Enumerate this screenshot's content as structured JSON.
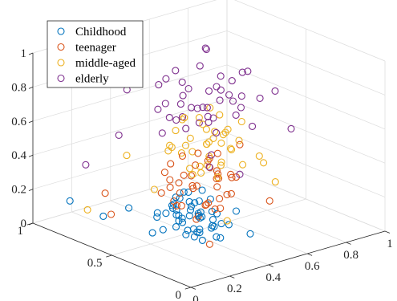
{
  "chart_data": {
    "type": "scatter",
    "dimensions": 3,
    "title": "",
    "xlabel": "",
    "ylabel": "",
    "zlabel": "",
    "xlim": [
      0,
      1
    ],
    "ylim": [
      0,
      1
    ],
    "zlim": [
      0,
      1
    ],
    "grid": true,
    "legend_position": "top-left",
    "x_ticks": [
      "0",
      "0.2",
      "0.4",
      "0.6",
      "0.8",
      "1"
    ],
    "y_ticks": [
      "0",
      "0.5",
      "1"
    ],
    "z_ticks": [
      "0",
      "0.2",
      "0.4",
      "0.6",
      "0.8",
      "1"
    ],
    "series": [
      {
        "name": "Childhood",
        "color": "#0072BD",
        "points": [
          [
            0.35,
            0.45,
            0.05
          ],
          [
            0.4,
            0.5,
            0.1
          ],
          [
            0.42,
            0.38,
            0.08
          ],
          [
            0.38,
            0.42,
            0.15
          ],
          [
            0.45,
            0.55,
            0.12
          ],
          [
            0.3,
            0.4,
            0.06
          ],
          [
            0.33,
            0.35,
            0.1
          ],
          [
            0.48,
            0.45,
            0.07
          ],
          [
            0.36,
            0.6,
            0.09
          ],
          [
            0.41,
            0.48,
            0.18
          ],
          [
            0.28,
            0.52,
            0.05
          ],
          [
            0.44,
            0.3,
            0.11
          ],
          [
            0.39,
            0.44,
            0.03
          ],
          [
            0.32,
            0.47,
            0.14
          ],
          [
            0.47,
            0.58,
            0.08
          ],
          [
            0.34,
            0.36,
            0.16
          ],
          [
            0.43,
            0.62,
            0.05
          ],
          [
            0.37,
            0.55,
            0.2
          ],
          [
            0.4,
            0.33,
            0.04
          ],
          [
            0.3,
            0.58,
            0.12
          ],
          [
            0.46,
            0.4,
            0.13
          ],
          [
            0.35,
            0.5,
            0.22
          ],
          [
            0.42,
            0.46,
            0.01
          ],
          [
            0.38,
            0.28,
            0.06
          ],
          [
            0.29,
            0.45,
            0.09
          ],
          [
            0.45,
            0.5,
            0.17
          ],
          [
            0.33,
            0.62,
            0.07
          ],
          [
            0.41,
            0.38,
            0.24
          ],
          [
            0.36,
            0.42,
            0.02
          ],
          [
            0.44,
            0.55,
            0.15
          ],
          [
            0.31,
            0.5,
            0.19
          ],
          [
            0.39,
            0.57,
            0.11
          ],
          [
            0.47,
            0.43,
            0.04
          ],
          [
            0.34,
            0.4,
            0.08
          ],
          [
            0.43,
            0.48,
            0.1
          ],
          [
            0.37,
            0.47,
            0.26
          ],
          [
            0.4,
            0.6,
            0.13
          ],
          [
            0.32,
            0.32,
            0.05
          ],
          [
            0.45,
            0.36,
            0.09
          ],
          [
            0.38,
            0.52,
            0.06
          ],
          [
            0.25,
            0.55,
            0.03
          ],
          [
            0.5,
            0.48,
            0.1
          ],
          [
            0.35,
            0.3,
            0.12
          ],
          [
            0.42,
            0.56,
            0.21
          ],
          [
            0.28,
            0.42,
            0.14
          ],
          [
            0.46,
            0.62,
            0.02
          ],
          [
            0.4,
            0.42,
            0.28
          ],
          [
            0.33,
            0.52,
            0.16
          ],
          [
            0.48,
            0.52,
            0.06
          ],
          [
            0.36,
            0.38,
            0.18
          ],
          [
            0.2,
            0.8,
            0.05
          ],
          [
            0.55,
            0.3,
            0.02
          ],
          [
            0.15,
            0.95,
            0.1
          ],
          [
            0.6,
            0.45,
            0.08
          ],
          [
            0.25,
            0.7,
            0.12
          ]
        ]
      },
      {
        "name": "teenager",
        "color": "#D95319",
        "points": [
          [
            0.35,
            0.5,
            0.25
          ],
          [
            0.45,
            0.55,
            0.3
          ],
          [
            0.4,
            0.4,
            0.2
          ],
          [
            0.5,
            0.45,
            0.35
          ],
          [
            0.38,
            0.6,
            0.28
          ],
          [
            0.42,
            0.35,
            0.32
          ],
          [
            0.48,
            0.58,
            0.22
          ],
          [
            0.33,
            0.45,
            0.38
          ],
          [
            0.55,
            0.5,
            0.27
          ],
          [
            0.44,
            0.42,
            0.4
          ],
          [
            0.36,
            0.55,
            0.18
          ],
          [
            0.52,
            0.38,
            0.33
          ],
          [
            0.4,
            0.62,
            0.36
          ],
          [
            0.47,
            0.48,
            0.15
          ],
          [
            0.3,
            0.5,
            0.3
          ],
          [
            0.58,
            0.55,
            0.24
          ],
          [
            0.43,
            0.3,
            0.29
          ],
          [
            0.39,
            0.45,
            0.42
          ],
          [
            0.5,
            0.6,
            0.19
          ],
          [
            0.34,
            0.38,
            0.34
          ],
          [
            0.46,
            0.52,
            0.44
          ],
          [
            0.55,
            0.42,
            0.21
          ],
          [
            0.41,
            0.58,
            0.26
          ],
          [
            0.37,
            0.42,
            0.12
          ],
          [
            0.49,
            0.35,
            0.37
          ],
          [
            0.32,
            0.58,
            0.23
          ],
          [
            0.53,
            0.48,
            0.31
          ],
          [
            0.45,
            0.4,
            0.16
          ],
          [
            0.38,
            0.52,
            0.45
          ],
          [
            0.6,
            0.45,
            0.28
          ],
          [
            0.42,
            0.47,
            0.1
          ],
          [
            0.35,
            0.32,
            0.26
          ],
          [
            0.56,
            0.58,
            0.34
          ],
          [
            0.4,
            0.55,
            0.14
          ],
          [
            0.48,
            0.42,
            0.47
          ],
          [
            0.31,
            0.47,
            0.2
          ],
          [
            0.52,
            0.52,
            0.39
          ],
          [
            0.44,
            0.36,
            0.24
          ],
          [
            0.37,
            0.62,
            0.32
          ],
          [
            0.51,
            0.44,
            0.13
          ],
          [
            0.2,
            0.75,
            0.08
          ],
          [
            0.65,
            0.3,
            0.18
          ],
          [
            0.25,
            0.85,
            0.15
          ],
          [
            0.7,
            0.55,
            0.4
          ],
          [
            0.3,
            0.25,
            0.06
          ]
        ]
      },
      {
        "name": "middle-aged",
        "color": "#EDB120",
        "points": [
          [
            0.4,
            0.55,
            0.45
          ],
          [
            0.5,
            0.5,
            0.5
          ],
          [
            0.45,
            0.45,
            0.4
          ],
          [
            0.55,
            0.6,
            0.55
          ],
          [
            0.42,
            0.4,
            0.48
          ],
          [
            0.48,
            0.58,
            0.42
          ],
          [
            0.52,
            0.42,
            0.58
          ],
          [
            0.38,
            0.5,
            0.52
          ],
          [
            0.58,
            0.52,
            0.46
          ],
          [
            0.46,
            0.62,
            0.6
          ],
          [
            0.44,
            0.35,
            0.44
          ],
          [
            0.54,
            0.47,
            0.38
          ],
          [
            0.41,
            0.6,
            0.56
          ],
          [
            0.5,
            0.38,
            0.62
          ],
          [
            0.36,
            0.45,
            0.41
          ],
          [
            0.57,
            0.55,
            0.52
          ],
          [
            0.47,
            0.52,
            0.36
          ],
          [
            0.53,
            0.4,
            0.49
          ],
          [
            0.43,
            0.57,
            0.64
          ],
          [
            0.49,
            0.46,
            0.54
          ],
          [
            0.6,
            0.48,
            0.43
          ],
          [
            0.39,
            0.38,
            0.57
          ],
          [
            0.51,
            0.63,
            0.47
          ],
          [
            0.45,
            0.5,
            0.66
          ],
          [
            0.56,
            0.36,
            0.4
          ],
          [
            0.4,
            0.48,
            0.35
          ],
          [
            0.62,
            0.58,
            0.59
          ],
          [
            0.48,
            0.42,
            0.33
          ],
          [
            0.35,
            0.55,
            0.5
          ],
          [
            0.53,
            0.53,
            0.68
          ],
          [
            0.44,
            0.44,
            0.53
          ],
          [
            0.59,
            0.42,
            0.51
          ],
          [
            0.42,
            0.65,
            0.45
          ],
          [
            0.5,
            0.55,
            0.3
          ],
          [
            0.46,
            0.36,
            0.61
          ],
          [
            0.3,
            0.6,
            0.25
          ],
          [
            0.7,
            0.4,
            0.35
          ],
          [
            0.25,
            0.45,
            0.55
          ],
          [
            0.75,
            0.6,
            0.5
          ],
          [
            0.2,
            0.9,
            0.05
          ],
          [
            0.8,
            0.55,
            0.3
          ],
          [
            0.35,
            0.2,
            0.2
          ],
          [
            0.65,
            0.7,
            0.45
          ],
          [
            0.28,
            0.75,
            0.4
          ],
          [
            0.72,
            0.35,
            0.25
          ]
        ]
      },
      {
        "name": "elderly",
        "color": "#7E2F8E",
        "points": [
          [
            0.45,
            0.55,
            0.7
          ],
          [
            0.5,
            0.5,
            0.8
          ],
          [
            0.4,
            0.45,
            0.75
          ],
          [
            0.55,
            0.6,
            0.65
          ],
          [
            0.48,
            0.4,
            0.85
          ],
          [
            0.42,
            0.58,
            0.72
          ],
          [
            0.52,
            0.45,
            0.9
          ],
          [
            0.38,
            0.52,
            0.68
          ],
          [
            0.58,
            0.55,
            0.78
          ],
          [
            0.46,
            0.62,
            0.82
          ],
          [
            0.44,
            0.38,
            0.62
          ],
          [
            0.54,
            0.48,
            0.74
          ],
          [
            0.36,
            0.6,
            0.88
          ],
          [
            0.6,
            0.42,
            0.7
          ],
          [
            0.47,
            0.52,
            0.95
          ],
          [
            0.41,
            0.4,
            0.77
          ],
          [
            0.56,
            0.58,
            0.6
          ],
          [
            0.49,
            0.46,
            0.66
          ],
          [
            0.35,
            0.48,
            0.83
          ],
          [
            0.62,
            0.52,
            0.73
          ],
          [
            0.43,
            0.56,
            0.58
          ],
          [
            0.51,
            0.36,
            0.79
          ],
          [
            0.39,
            0.64,
            0.71
          ],
          [
            0.57,
            0.44,
            0.86
          ],
          [
            0.45,
            0.5,
            0.63
          ],
          [
            0.3,
            0.55,
            0.6
          ],
          [
            0.7,
            0.5,
            0.85
          ],
          [
            0.25,
            0.4,
            0.75
          ],
          [
            0.75,
            0.6,
            0.65
          ],
          [
            0.35,
            0.3,
            0.55
          ],
          [
            0.65,
            0.7,
            0.92
          ],
          [
            0.2,
            0.65,
            0.85
          ],
          [
            0.8,
            0.45,
            0.72
          ],
          [
            0.28,
            0.8,
            0.5
          ],
          [
            0.72,
            0.25,
            0.6
          ],
          [
            0.15,
            0.85,
            0.35
          ],
          [
            0.4,
            0.7,
            0.65
          ],
          [
            0.6,
            0.3,
            0.8
          ],
          [
            0.5,
            0.75,
            0.55
          ],
          [
            0.55,
            0.35,
            0.95
          ],
          [
            0.33,
            0.42,
            0.9
          ],
          [
            0.68,
            0.55,
            0.58
          ],
          [
            0.45,
            0.65,
            0.88
          ],
          [
            0.52,
            0.25,
            0.68
          ],
          [
            0.38,
            0.35,
            0.45
          ],
          [
            0.62,
            0.65,
            0.52
          ],
          [
            0.48,
            0.28,
            0.4
          ],
          [
            0.58,
            0.62,
            0.98
          ],
          [
            0.42,
            0.72,
            0.78
          ]
        ]
      }
    ]
  }
}
